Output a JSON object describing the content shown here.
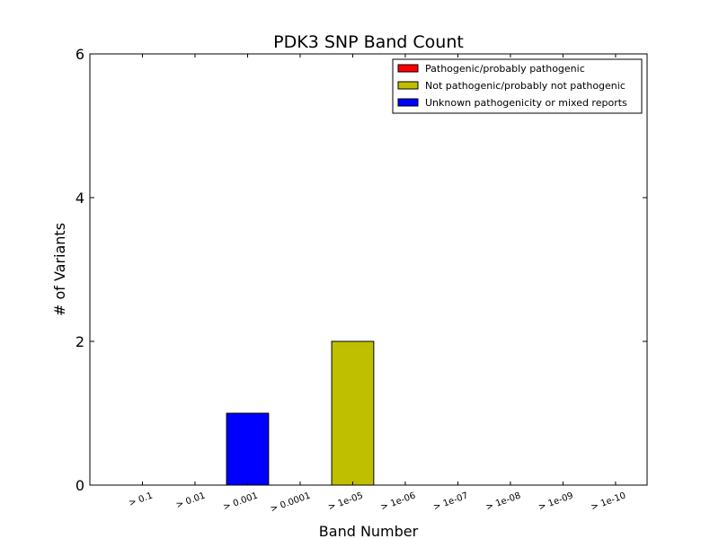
{
  "chart_data": {
    "type": "bar",
    "title": "PDK3 SNP Band Count",
    "xlabel": "Band Number",
    "ylabel": "# of Variants",
    "ylim": [
      0,
      6
    ],
    "yticks": [
      0,
      2,
      4,
      6
    ],
    "categories": [
      "> 0.1",
      "> 0.01",
      "> 0.001",
      "> 0.0001",
      "> 1e-05",
      "> 1e-06",
      "> 1e-07",
      "> 1e-08",
      "> 1e-09",
      "> 1e-10"
    ],
    "stacked": true,
    "grid": false,
    "legend_position": "top-right",
    "series": [
      {
        "name": "Pathogenic/probably pathogenic",
        "color": "#ff0000",
        "values": [
          0,
          0,
          0,
          0,
          0,
          0,
          0,
          0,
          0,
          0
        ]
      },
      {
        "name": "Not pathogenic/probably not pathogenic",
        "color": "#bfbf00",
        "values": [
          0,
          0,
          0,
          0,
          2,
          0,
          0,
          0,
          0,
          0
        ]
      },
      {
        "name": "Unknown pathogenicity or mixed reports",
        "color": "#0000ff",
        "values": [
          0,
          0,
          1,
          0,
          0,
          0,
          0,
          0,
          0,
          0
        ]
      }
    ]
  }
}
